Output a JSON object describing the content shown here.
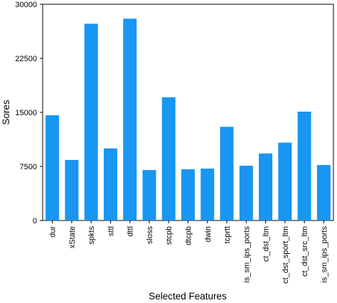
{
  "chart_data": {
    "type": "bar",
    "title": "",
    "xlabel": "Selected Features",
    "ylabel": "Sores",
    "ylim": [
      0,
      30000
    ],
    "yticks": [
      0,
      7500,
      15000,
      22500,
      30000
    ],
    "grid": false,
    "legend": "none",
    "bar_color": "#1896F2",
    "categories": [
      "dur",
      "xState",
      "spkts",
      "sttl",
      "dttl",
      "sloss",
      "stcpb",
      "dtcpb",
      "dwin",
      "tcprtt",
      "is_sm_ips_ports",
      "ct_dst_ltm",
      "ct_dst_sport_ltm",
      "ct_dst_src_ltm",
      "is_sm_ips_ports"
    ],
    "series": [
      {
        "values": [
          14600,
          8400,
          27300,
          10000,
          28000,
          7000,
          17100,
          7100,
          7200,
          13000,
          7600,
          9300,
          10800,
          15100,
          7700
        ]
      }
    ]
  }
}
